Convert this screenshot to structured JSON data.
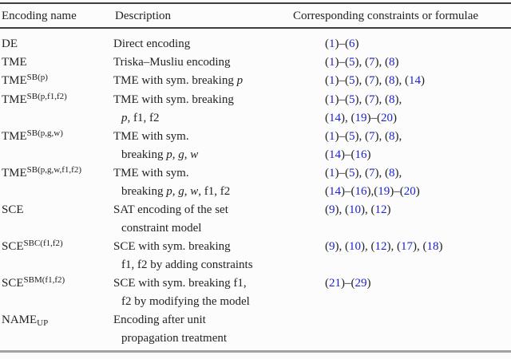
{
  "colors": {
    "text": "#232323",
    "formula_number_blue": "#1c22d2",
    "top_rule": "#3d3d3d",
    "header_rule": "#3d3d3d",
    "bottom_rule": "#a2a2a2"
  },
  "table": {
    "headers": [
      {
        "label": "Encoding name"
      },
      {
        "label": "Description"
      },
      {
        "label": "Corresponding constraints or formulae"
      }
    ],
    "rows": [
      {
        "name": {
          "base": "DE",
          "sup": "",
          "sub": ""
        },
        "description_lines": [
          [
            {
              "t": "Direct encoding",
              "i": false
            }
          ]
        ],
        "formula_lines": [
          "(1)–(6)"
        ]
      },
      {
        "name": {
          "base": "TME",
          "sup": "",
          "sub": ""
        },
        "description_lines": [
          [
            {
              "t": "Triska–Musliu encoding",
              "i": false
            }
          ]
        ],
        "formula_lines": [
          "(1)–(5), (7), (8)"
        ]
      },
      {
        "name": {
          "base": "TME",
          "sup": "SB(p)",
          "sub": ""
        },
        "description_lines": [
          [
            {
              "t": "TME with sym. breaking ",
              "i": false
            },
            {
              "t": "p",
              "i": true
            }
          ]
        ],
        "formula_lines": [
          "(1)–(5), (7), (8), (14)"
        ]
      },
      {
        "name": {
          "base": "TME",
          "sup": "SB(p,f1,f2)",
          "sub": ""
        },
        "description_lines": [
          [
            {
              "t": "TME with sym. breaking",
              "i": false
            }
          ],
          [
            {
              "t": "p",
              "i": true
            },
            {
              "t": ", f1, f2",
              "i": false
            }
          ]
        ],
        "formula_lines": [
          "(1)–(5), (7), (8),",
          "(14), (19)–(20)"
        ]
      },
      {
        "name": {
          "base": "TME",
          "sup": "SB(p,g,w)",
          "sub": ""
        },
        "description_lines": [
          [
            {
              "t": "TME with sym.",
              "i": false
            }
          ],
          [
            {
              "t": "breaking ",
              "i": false
            },
            {
              "t": "p",
              "i": true
            },
            {
              "t": ", ",
              "i": false
            },
            {
              "t": "g",
              "i": true
            },
            {
              "t": ", ",
              "i": false
            },
            {
              "t": "w",
              "i": true
            }
          ]
        ],
        "formula_lines": [
          "(1)–(5), (7), (8),",
          "(14)–(16)"
        ]
      },
      {
        "name": {
          "base": "TME",
          "sup": "SB(p,g,w,f1,f2)",
          "sub": ""
        },
        "description_lines": [
          [
            {
              "t": "TME with sym.",
              "i": false
            }
          ],
          [
            {
              "t": "breaking ",
              "i": false
            },
            {
              "t": "p",
              "i": true
            },
            {
              "t": ", ",
              "i": false
            },
            {
              "t": "g",
              "i": true
            },
            {
              "t": ", ",
              "i": false
            },
            {
              "t": "w",
              "i": true
            },
            {
              "t": ", f1, f2",
              "i": false
            }
          ]
        ],
        "formula_lines": [
          "(1)–(5), (7), (8),",
          "(14)–(16),(19)–(20)"
        ]
      },
      {
        "name": {
          "base": "SCE",
          "sup": "",
          "sub": ""
        },
        "description_lines": [
          [
            {
              "t": "SAT encoding of the set",
              "i": false
            }
          ],
          [
            {
              "t": "constraint model",
              "i": false
            }
          ]
        ],
        "formula_lines": [
          "(9), (10), (12)"
        ]
      },
      {
        "name": {
          "base": "SCE",
          "sup": "SBC(f1,f2)",
          "sub": ""
        },
        "description_lines": [
          [
            {
              "t": "SCE with sym. breaking",
              "i": false
            }
          ],
          [
            {
              "t": "f1, f2 by adding constraints",
              "i": false
            }
          ]
        ],
        "formula_lines": [
          "(9), (10), (12), (17), (18)"
        ]
      },
      {
        "name": {
          "base": "SCE",
          "sup": "SBM(f1,f2)",
          "sub": ""
        },
        "description_lines": [
          [
            {
              "t": "SCE with sym. breaking f1,",
              "i": false
            }
          ],
          [
            {
              "t": "f2 by modifying the model",
              "i": false
            }
          ]
        ],
        "formula_lines": [
          "(21)–(29)"
        ]
      },
      {
        "name": {
          "base": "NAME",
          "sup": "",
          "sub": "UP"
        },
        "description_lines": [
          [
            {
              "t": "Encoding after unit",
              "i": false
            }
          ],
          [
            {
              "t": "propagation treatment",
              "i": false
            }
          ]
        ],
        "formula_lines": []
      }
    ]
  }
}
